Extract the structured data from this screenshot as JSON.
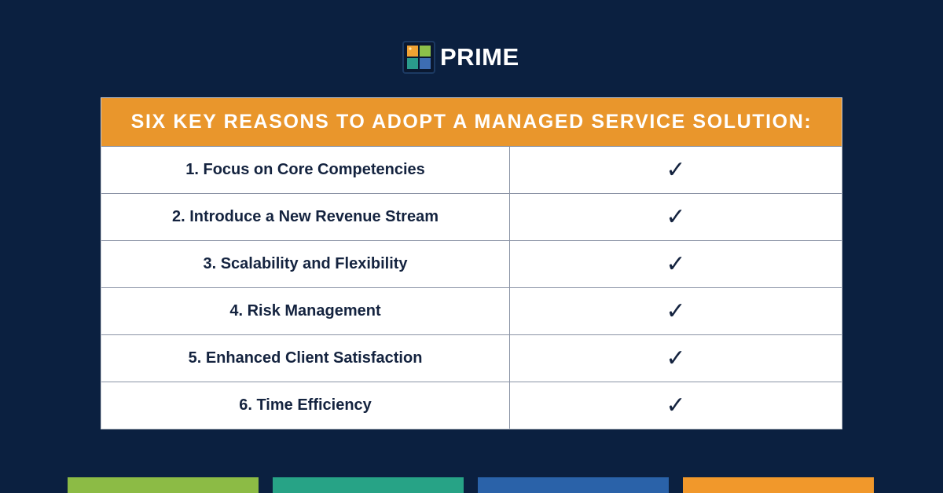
{
  "brand": {
    "name": "PRIME",
    "mark_colors": [
      "#f0a233",
      "#8cc04a",
      "#2a9b8c",
      "#3d6db3"
    ]
  },
  "table": {
    "title": "SIX KEY REASONS TO ADOPT A MANAGED SERVICE SOLUTION:",
    "header_color": "#e9962c",
    "rows": [
      {
        "reason": "1. Focus on Core Competencies",
        "mark": "✓"
      },
      {
        "reason": "2. Introduce a New Revenue Stream",
        "mark": "✓"
      },
      {
        "reason": "3. Scalability and Flexibility",
        "mark": "✓"
      },
      {
        "reason": "4. Risk Management",
        "mark": "✓"
      },
      {
        "reason": "5. Enhanced Client Satisfaction",
        "mark": "✓"
      },
      {
        "reason": "6. Time Efficiency",
        "mark": "✓"
      }
    ]
  },
  "footer_bars": [
    {
      "color": "#8cbb45"
    },
    {
      "color": "#27a386"
    },
    {
      "color": "#2a62a9"
    },
    {
      "color": "#f1982b"
    }
  ],
  "background_color": "#0b2040"
}
